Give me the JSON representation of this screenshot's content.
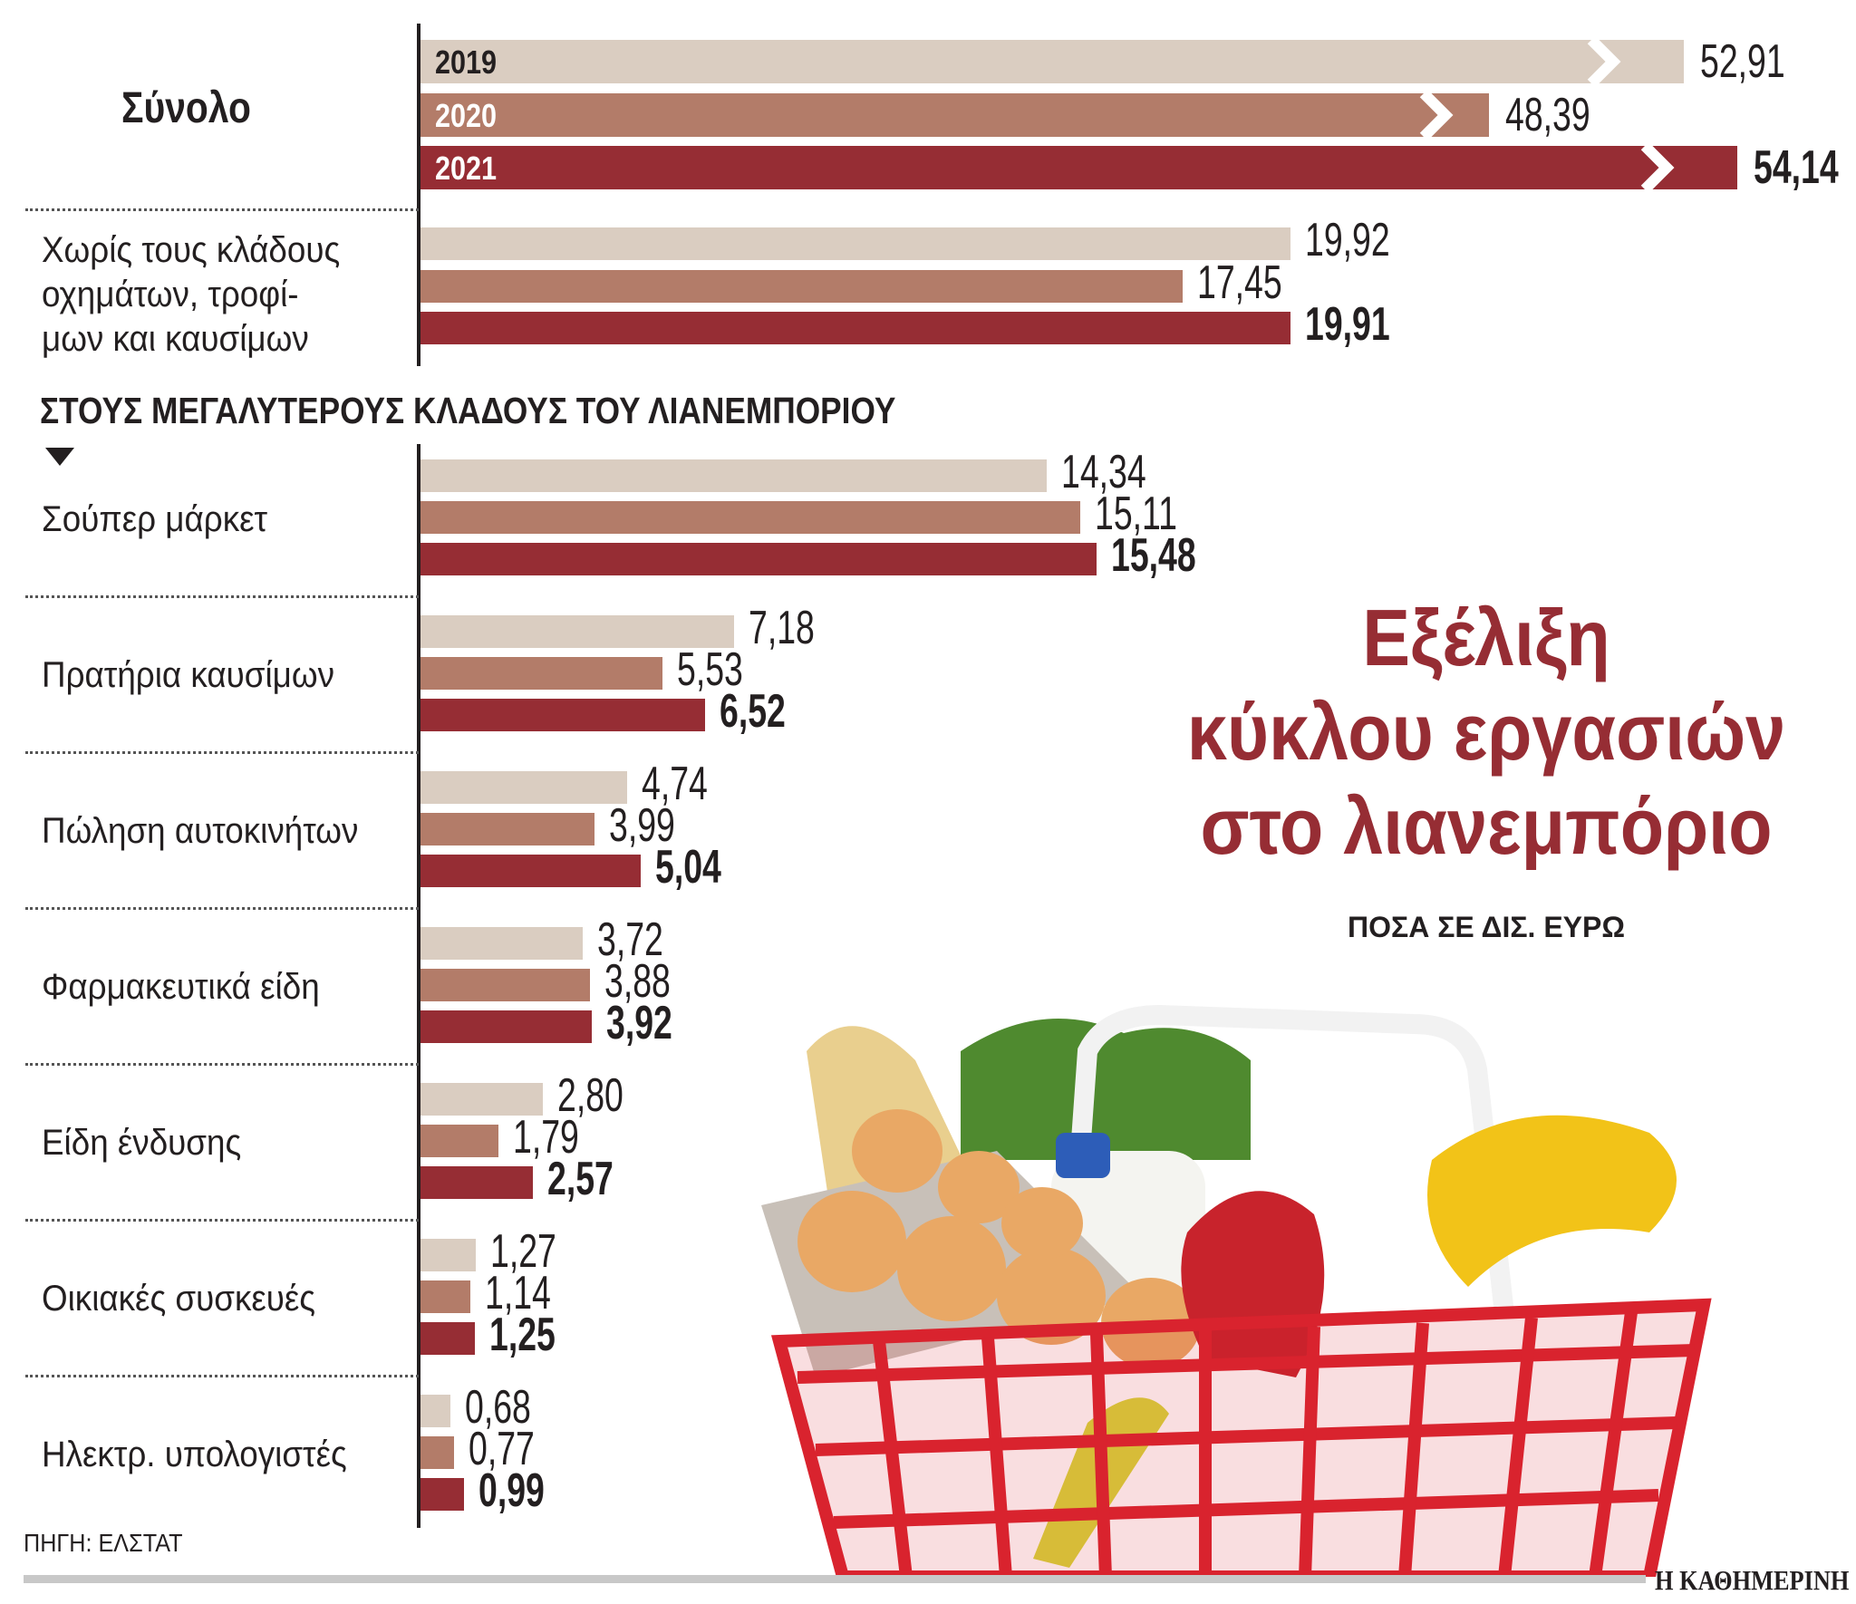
{
  "chart_data": {
    "type": "bar",
    "orientation": "horizontal",
    "title": "Εξέλιξη κύκλου εργασιών στο λιανεμπόριο",
    "subtitle": "ΠΟΣΑ ΣΕ ΔΙΣ. ΕΥΡΩ",
    "section_heading": "ΣΤΟΥΣ ΜΕΓΑΛΥΤΕΡΟΥΣ ΚΛΑΔΟΥΣ ΤΟΥ ΛΙΑΝΕΜΠΟΡΙΟΥ",
    "series_names": [
      "2019",
      "2020",
      "2021"
    ],
    "colors": {
      "2019": "#dacdc1",
      "2020": "#b37c69",
      "2021": "#962d34",
      "title": "#962d34"
    },
    "total": {
      "category": "Σύνολο",
      "values": [
        52.91,
        48.39,
        54.14
      ],
      "labels": [
        "52,91",
        "48,39",
        "54,14"
      ],
      "broken_axis": true
    },
    "excluding": {
      "category": "Χωρίς τους κλάδους οχημάτων, τροφί- μων και καυσίμων",
      "lines": [
        "Χωρίς τους κλάδους",
        "οχημάτων, τροφί-",
        "μων και καυσίμων"
      ],
      "values": [
        19.92,
        17.45,
        19.91
      ],
      "labels": [
        "19,92",
        "17,45",
        "19,91"
      ]
    },
    "categories": [
      {
        "name": "Σούπερ μάρκετ",
        "values": [
          14.34,
          15.11,
          15.48
        ],
        "labels": [
          "14,34",
          "15,11",
          "15,48"
        ]
      },
      {
        "name": "Πρατήρια καυσίμων",
        "values": [
          7.18,
          5.53,
          6.52
        ],
        "labels": [
          "7,18",
          "5,53",
          "6,52"
        ]
      },
      {
        "name": "Πώληση αυτοκινήτων",
        "values": [
          4.74,
          3.99,
          5.04
        ],
        "labels": [
          "4,74",
          "3,99",
          "5,04"
        ]
      },
      {
        "name": "Φαρμακευτικά είδη",
        "values": [
          3.72,
          3.88,
          3.92
        ],
        "labels": [
          "3,72",
          "3,88",
          "3,92"
        ]
      },
      {
        "name": "Είδη ένδυσης",
        "values": [
          2.8,
          1.79,
          2.57
        ],
        "labels": [
          "2,80",
          "1,79",
          "2,57"
        ]
      },
      {
        "name": "Οικιακές συσκευές",
        "values": [
          1.27,
          1.14,
          1.25
        ],
        "labels": [
          "1,27",
          "1,14",
          "1,25"
        ]
      },
      {
        "name": "Ηλεκτρ. υπολογιστές",
        "values": [
          0.68,
          0.77,
          0.99
        ],
        "labels": [
          "0,68",
          "0,77",
          "0,99"
        ]
      }
    ],
    "xlabel": "",
    "ylabel": "",
    "grid": false,
    "legend": "inside-total-bars"
  },
  "title_lines": [
    "Εξέλιξη",
    "κύκλου εργασιών",
    "στο λιανεμπόριο"
  ],
  "footer": {
    "source": "ΠΗΓΗ: ΕΛΣΤΑΤ",
    "brand": "Η ΚΑΘΗΜΕΡΙΝΗ"
  },
  "illustration": "shopping-basket-with-groceries"
}
